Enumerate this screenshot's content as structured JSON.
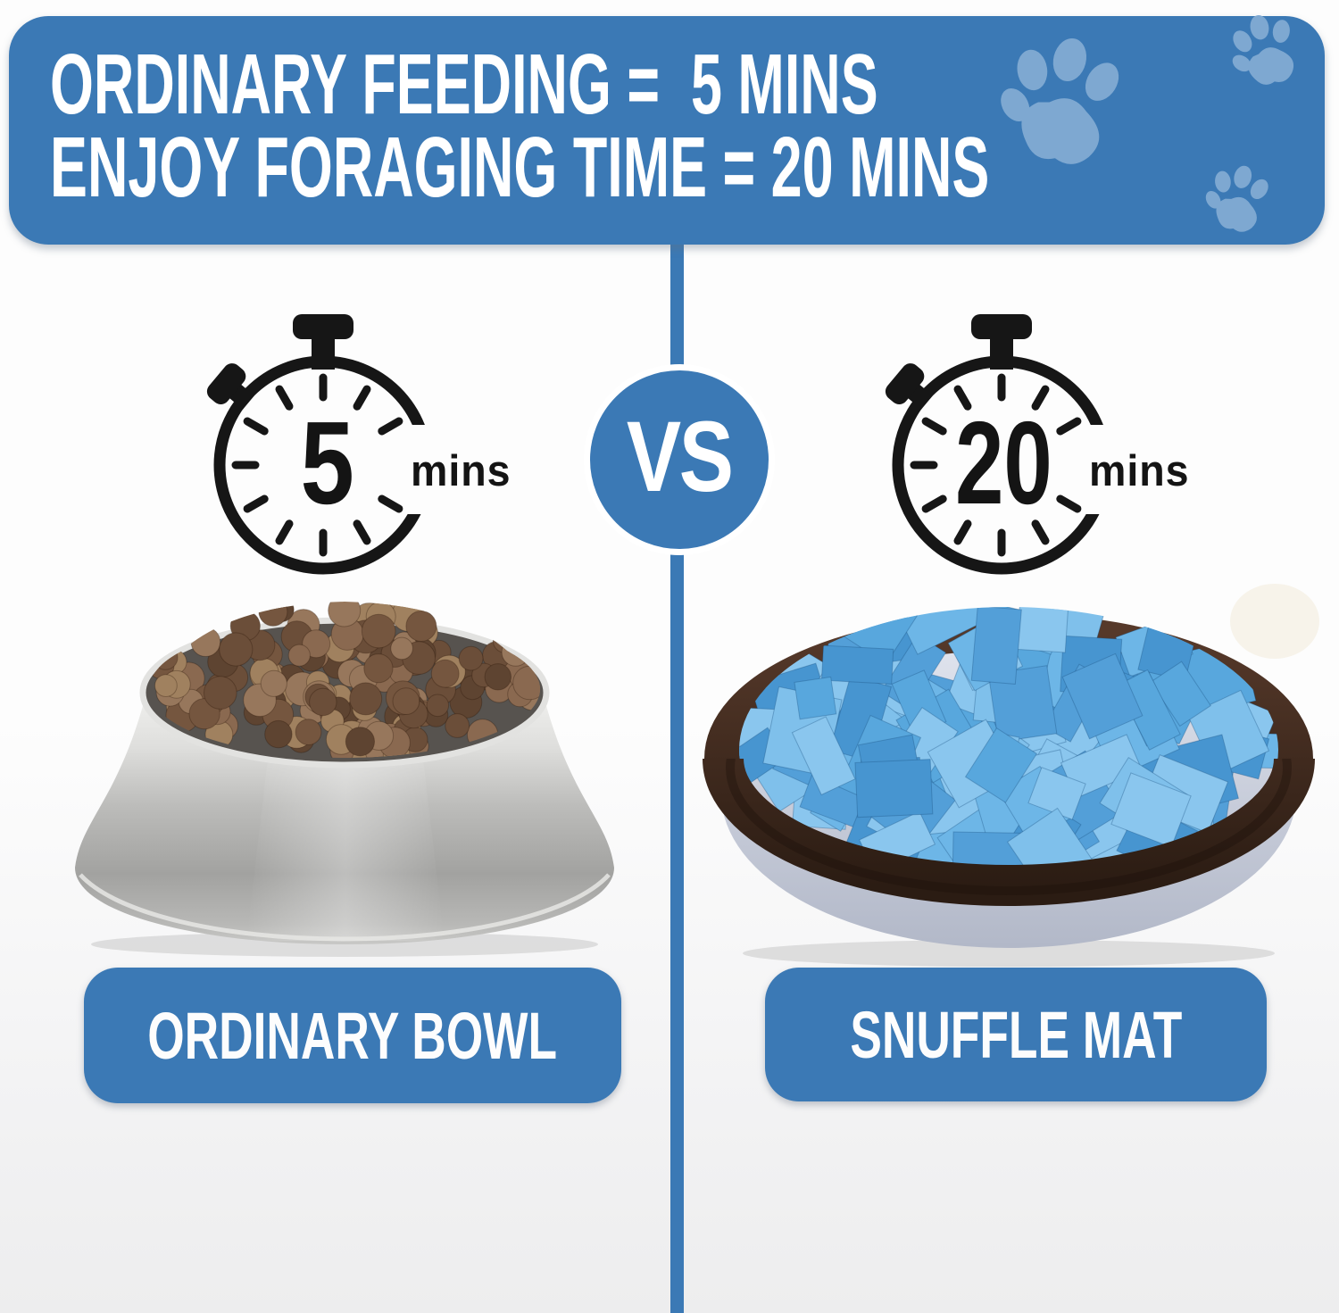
{
  "header": {
    "line1": "ORDINARY FEEDING =  5 MINS",
    "line2": "ENJOY FORAGING TIME = 20 MINS"
  },
  "versus": {
    "label": "VS"
  },
  "left_panel": {
    "timer_value": "5",
    "timer_unit": "mins",
    "product_label": "ORDINARY BOWL"
  },
  "right_panel": {
    "timer_value": "20",
    "timer_unit": "mins",
    "product_label": "SNUFFLE MAT"
  },
  "colors": {
    "primary_blue": "#3b79b5",
    "paw_blue": "#7ea8d1",
    "timer_black": "#161616",
    "strip_blue": "#58a7dd",
    "rim_brown": "#3a2a1e",
    "felt_gray": "#c6ccda",
    "kibble_brown": "#85644b",
    "bowl_silver": "#bcbcba"
  }
}
